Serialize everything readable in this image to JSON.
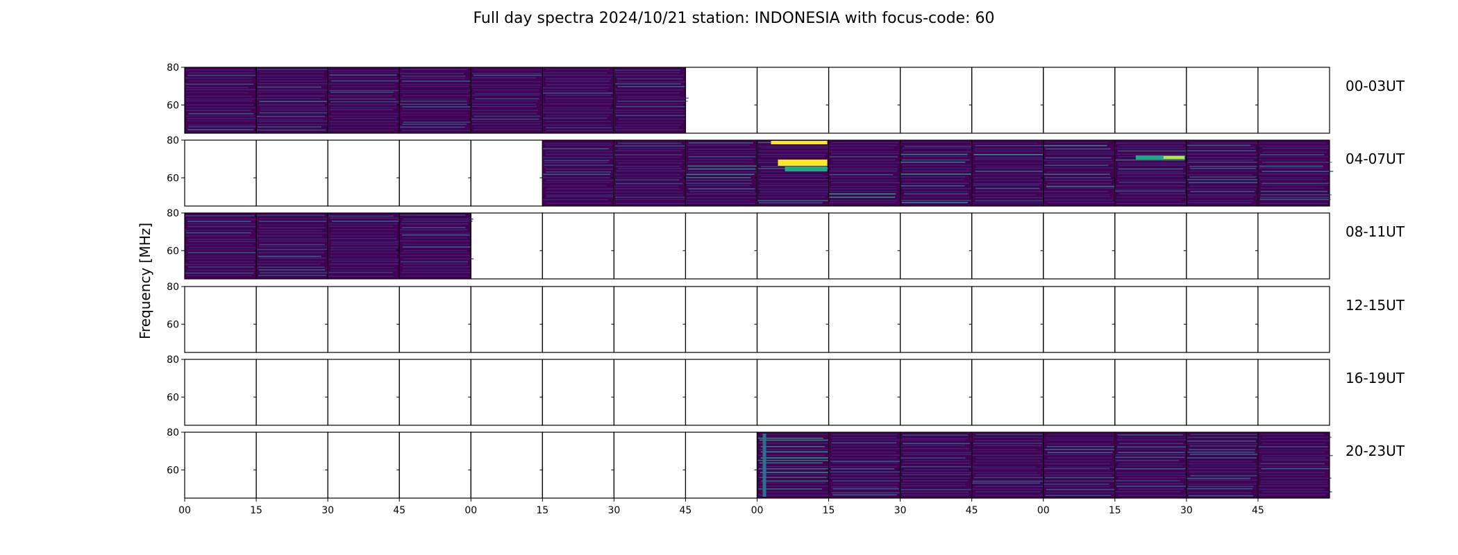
{
  "chart_data": {
    "type": "heatmap",
    "title": "Full day spectra 2024/10/21 station: INDONESIA with focus-code: 60",
    "ylabel": "Frequency [MHz]",
    "xlabel": "",
    "ylim": [
      45,
      80
    ],
    "yticks": [
      "80",
      "60"
    ],
    "xticks": [
      "00",
      "15",
      "30",
      "45",
      "00",
      "15",
      "30",
      "45",
      "00",
      "15",
      "30",
      "45",
      "00",
      "15",
      "30",
      "45"
    ],
    "panels_per_row": 16,
    "rows": [
      {
        "label": "00-03UT",
        "filled": [
          1,
          1,
          1,
          1,
          1,
          1,
          1,
          0,
          0,
          0,
          0,
          0,
          0,
          0,
          0,
          0
        ]
      },
      {
        "label": "04-07UT",
        "filled": [
          0,
          0,
          0,
          0,
          0,
          1,
          1,
          1,
          1,
          1,
          1,
          1,
          1,
          1,
          1,
          1
        ]
      },
      {
        "label": "08-11UT",
        "filled": [
          1,
          1,
          1,
          1,
          0,
          0,
          0,
          0,
          0,
          0,
          0,
          0,
          0,
          0,
          0,
          0
        ]
      },
      {
        "label": "12-15UT",
        "filled": [
          0,
          0,
          0,
          0,
          0,
          0,
          0,
          0,
          0,
          0,
          0,
          0,
          0,
          0,
          0,
          0
        ]
      },
      {
        "label": "16-19UT",
        "filled": [
          0,
          0,
          0,
          0,
          0,
          0,
          0,
          0,
          0,
          0,
          0,
          0,
          0,
          0,
          0,
          0
        ]
      },
      {
        "label": "20-23UT",
        "filled": [
          0,
          0,
          0,
          0,
          0,
          0,
          0,
          0,
          1,
          1,
          1,
          1,
          1,
          1,
          1,
          1
        ]
      }
    ],
    "colormap": "viridis",
    "colors": {
      "background": "#440154",
      "low": "#3b2a7a",
      "mid": "#2c6e8e",
      "high_teal": "#26a58a",
      "high_yellow": "#fde725"
    },
    "grid": false
  }
}
